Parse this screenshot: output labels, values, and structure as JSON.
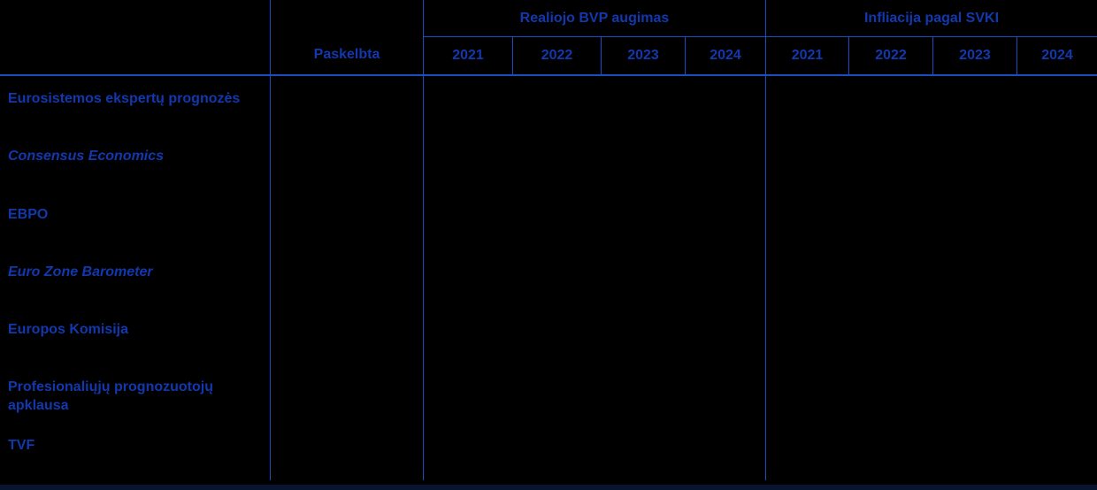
{
  "table": {
    "header": {
      "paskelbta": "Paskelbta",
      "group1": "Realiojo BVP augimas",
      "group2": "Infliacija pagal SVKI",
      "group1_years": [
        "2021",
        "2022",
        "2023",
        "2024"
      ],
      "group2_years": [
        "2021",
        "2022",
        "2023",
        "2024"
      ]
    },
    "rows": [
      {
        "label": "Eurosistemos ekspertų prognozės"
      },
      {
        "label": "Consensus Economics"
      },
      {
        "label": "EBPO"
      },
      {
        "label": "Euro Zone Barometer"
      },
      {
        "label": "Europos Komisija"
      },
      {
        "label": "Profesionaliųjų prognozuotojų apklausa"
      },
      {
        "label": "TVF"
      }
    ],
    "colors": {
      "background": "#000000",
      "text_blue": "#1238AE",
      "grid_line_blue": "#1A4DC2",
      "bottom_border_navy": "#081430"
    }
  },
  "chart_data": {
    "type": "table",
    "title": "",
    "extra_columns": [
      "Paskelbta"
    ],
    "column_groups": [
      {
        "label": "Realiojo BVP augimas",
        "columns": [
          "2021",
          "2022",
          "2023",
          "2024"
        ]
      },
      {
        "label": "Infliacija pagal SVKI",
        "columns": [
          "2021",
          "2022",
          "2023",
          "2024"
        ]
      }
    ],
    "row_labels": [
      "Eurosistemos ekspertų prognozės",
      "Consensus Economics",
      "EBPO",
      "Euro Zone Barometer",
      "Europos Komisija",
      "Profesionaliųjų prognozuotojų apklausa",
      "TVF"
    ],
    "cell_values": "none visible (all data cells empty/blank in screenshot)"
  }
}
